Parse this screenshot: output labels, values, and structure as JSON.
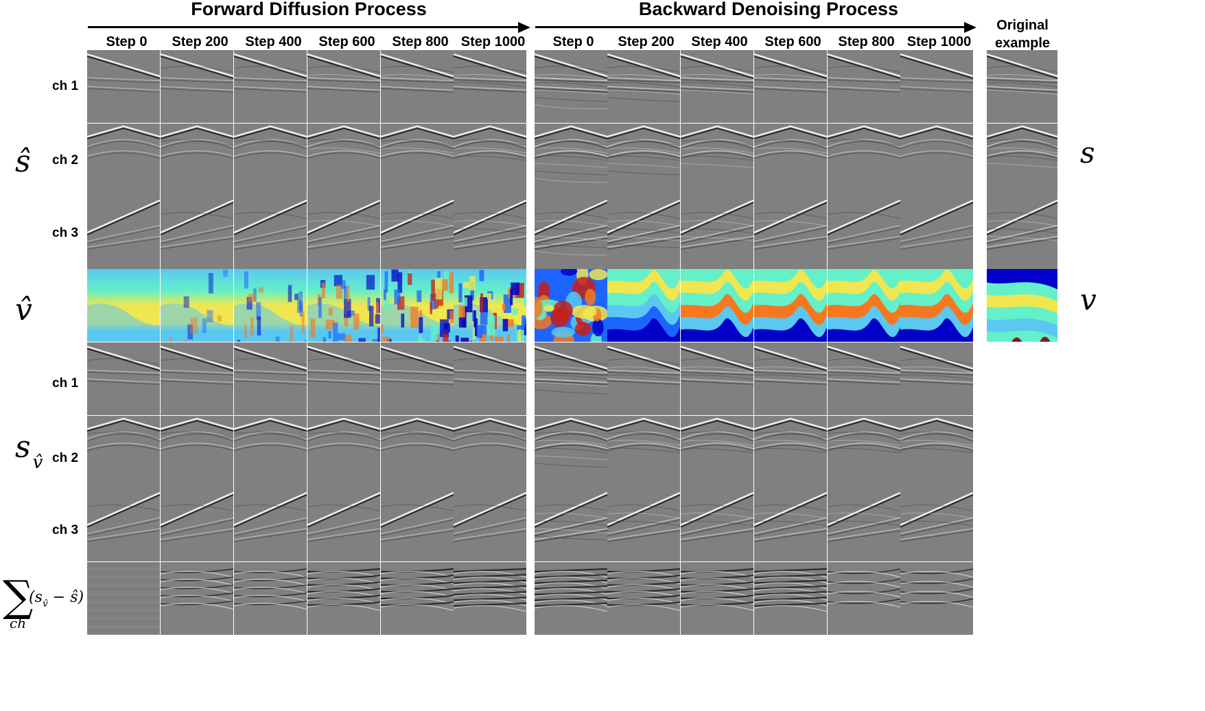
{
  "forward_title": "Forward Diffusion Process",
  "backward_title": "Backward Denoising Process",
  "forward_steps": [
    "Step 0",
    "Step 200",
    "Step 400",
    "Step 600",
    "Step 800",
    "Step 1000"
  ],
  "backward_steps": [
    "Step 0",
    "Step 200",
    "Step 400",
    "Step 600",
    "Step 800",
    "Step 1000"
  ],
  "original_label_line1": "Original",
  "original_label_line2": "example",
  "row_labels": {
    "s_hat_ch": [
      "ch 1",
      "ch 2",
      "ch 3"
    ],
    "s_v_ch": [
      "ch 1",
      "ch 2",
      "ch 3"
    ]
  },
  "symbols": {
    "s_hat": "ŝ",
    "v_hat": "v̂",
    "s": "s",
    "v": "v",
    "s_v": "s",
    "s_v_sub": "v̂",
    "sum_sign": "∑",
    "sum_sub": "ch",
    "sum_expr": "(s",
    "sum_expr_sub": "v̂",
    "sum_expr_rest": " − ŝ)"
  },
  "colors": {
    "background": "#ffffff",
    "seismic_gray": "#808080",
    "jet_dark_blue": "#0000c8",
    "jet_blue": "#1e64ff",
    "jet_light_blue": "#5ac8f0",
    "jet_cyan": "#64f0c8",
    "jet_yellow": "#f0e650",
    "jet_orange": "#f5781e",
    "jet_red": "#c81e14",
    "jet_dark_red": "#8b1a1a"
  },
  "legend_icons": [
    "right-arrow-icon"
  ]
}
